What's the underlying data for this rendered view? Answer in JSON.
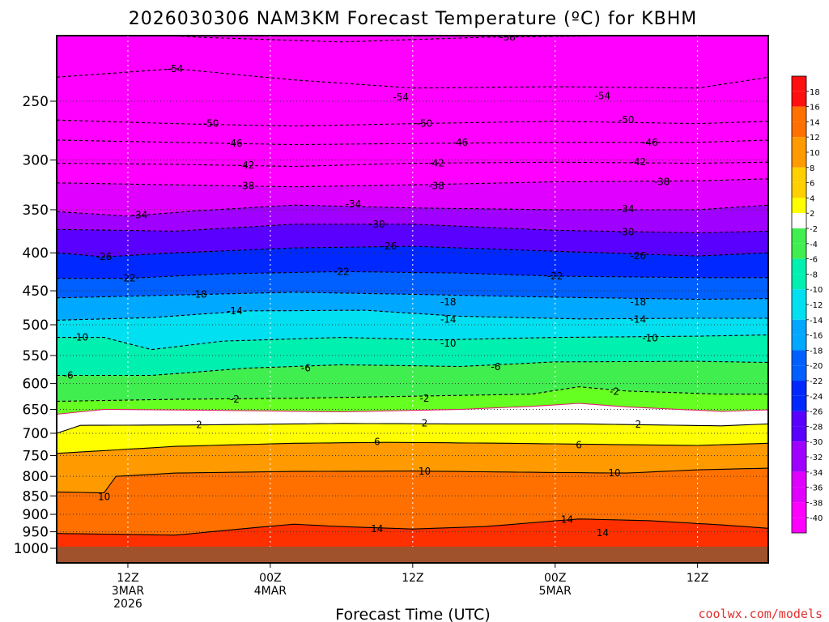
{
  "chart_data": {
    "type": "heatmap",
    "title": "2026030306 NAM3KM Forecast Temperature (ºC) for KBHM",
    "xlabel": "Forecast Time (UTC)",
    "ylabel": "",
    "credit": "coolwx.com/models",
    "y_scale": "inverted",
    "ylim": [
      1000,
      200
    ],
    "y_ticks": [
      250,
      300,
      350,
      400,
      450,
      500,
      550,
      600,
      650,
      700,
      750,
      800,
      850,
      900,
      950,
      1000
    ],
    "x_ticks": [
      {
        "hour": 6,
        "lines": [
          "12Z",
          "3MAR",
          "2026"
        ]
      },
      {
        "hour": 18,
        "lines": [
          "00Z",
          "4MAR"
        ]
      },
      {
        "hour": 30,
        "lines": [
          "12Z"
        ]
      },
      {
        "hour": 42,
        "lines": [
          "00Z",
          "5MAR"
        ]
      },
      {
        "hour": 54,
        "lines": [
          "12Z"
        ]
      }
    ],
    "xlim": [
      0,
      60
    ],
    "grid": true,
    "colorbar": {
      "position": "right",
      "labels": [
        "18",
        "16",
        "14",
        "12",
        "10",
        "8",
        "6",
        "4",
        "2",
        "-2",
        "-4",
        "-6",
        "-8",
        "-10",
        "-12",
        "-14",
        "-16",
        "-18",
        "-20",
        "-22",
        "-24",
        "-26",
        "-28",
        "-30",
        "-32",
        "-34",
        "-36",
        "-38",
        "-40"
      ]
    },
    "isotherms": [
      {
        "temp": -58,
        "dashed": true,
        "levels_by_hour": [
          [
            0,
            200
          ],
          [
            12,
            205
          ],
          [
            24,
            208
          ],
          [
            36,
            205
          ],
          [
            48,
            204
          ],
          [
            60,
            202
          ]
        ],
        "labels": [
          {
            "hour": 38,
            "level": 205,
            "text": "-58"
          }
        ]
      },
      {
        "temp": -54,
        "dashed": true,
        "levels_by_hour": [
          [
            0,
            232
          ],
          [
            10,
            226
          ],
          [
            20,
            234
          ],
          [
            30,
            240
          ],
          [
            42,
            239
          ],
          [
            54,
            240
          ],
          [
            60,
            232
          ]
        ],
        "labels": [
          {
            "hour": 10,
            "level": 226,
            "text": "-54"
          },
          {
            "hour": 29,
            "level": 247,
            "text": "-54"
          },
          {
            "hour": 46,
            "level": 246,
            "text": "-54"
          }
        ]
      },
      {
        "temp": -50,
        "dashed": true,
        "levels_by_hour": [
          [
            0,
            265
          ],
          [
            10,
            268
          ],
          [
            20,
            270
          ],
          [
            30,
            268
          ],
          [
            42,
            266
          ],
          [
            54,
            268
          ],
          [
            60,
            266
          ]
        ],
        "labels": [
          {
            "hour": 13,
            "level": 268,
            "text": "-50"
          },
          {
            "hour": 31,
            "level": 268,
            "text": "-50"
          },
          {
            "hour": 48,
            "level": 265,
            "text": "-50"
          }
        ]
      },
      {
        "temp": -46,
        "dashed": true,
        "levels_by_hour": [
          [
            0,
            282
          ],
          [
            10,
            284
          ],
          [
            20,
            286
          ],
          [
            30,
            285
          ],
          [
            42,
            284
          ],
          [
            54,
            284
          ],
          [
            60,
            282
          ]
        ],
        "labels": [
          {
            "hour": 15,
            "level": 285,
            "text": "-46"
          },
          {
            "hour": 34,
            "level": 284,
            "text": "-46"
          },
          {
            "hour": 50,
            "level": 284,
            "text": "-46"
          }
        ]
      },
      {
        "temp": -42,
        "dashed": true,
        "levels_by_hour": [
          [
            0,
            303
          ],
          [
            10,
            304
          ],
          [
            20,
            306
          ],
          [
            30,
            303
          ],
          [
            42,
            302
          ],
          [
            54,
            303
          ],
          [
            60,
            302
          ]
        ],
        "labels": [
          {
            "hour": 16,
            "level": 305,
            "text": "-42"
          },
          {
            "hour": 32,
            "level": 303,
            "text": "-42"
          },
          {
            "hour": 49,
            "level": 302,
            "text": "-42"
          }
        ]
      },
      {
        "temp": -38,
        "dashed": true,
        "levels_by_hour": [
          [
            0,
            322
          ],
          [
            10,
            324
          ],
          [
            20,
            326
          ],
          [
            30,
            324
          ],
          [
            42,
            321
          ],
          [
            54,
            320
          ],
          [
            60,
            318
          ]
        ],
        "labels": [
          {
            "hour": 16,
            "level": 325,
            "text": "-38"
          },
          {
            "hour": 32,
            "level": 325,
            "text": "-38"
          },
          {
            "hour": 51,
            "level": 321,
            "text": "-38"
          }
        ]
      },
      {
        "temp": -34,
        "dashed": true,
        "levels_by_hour": [
          [
            0,
            352
          ],
          [
            6,
            357
          ],
          [
            12,
            351
          ],
          [
            20,
            345
          ],
          [
            30,
            348
          ],
          [
            42,
            350
          ],
          [
            54,
            350
          ],
          [
            60,
            345
          ]
        ],
        "labels": [
          {
            "hour": 7,
            "level": 356,
            "text": "-34"
          },
          {
            "hour": 25,
            "level": 344,
            "text": "-34"
          },
          {
            "hour": 48,
            "level": 349,
            "text": "-34"
          }
        ]
      },
      {
        "temp": -30,
        "dashed": true,
        "levels_by_hour": [
          [
            0,
            372
          ],
          [
            10,
            374
          ],
          [
            20,
            366
          ],
          [
            30,
            366
          ],
          [
            42,
            373
          ],
          [
            54,
            376
          ],
          [
            60,
            374
          ]
        ],
        "labels": [
          {
            "hour": 27,
            "level": 366,
            "text": "-30"
          },
          {
            "hour": 48,
            "level": 375,
            "text": "-30"
          }
        ]
      },
      {
        "temp": -26,
        "dashed": true,
        "levels_by_hour": [
          [
            0,
            400
          ],
          [
            4,
            405
          ],
          [
            10,
            400
          ],
          [
            20,
            394
          ],
          [
            30,
            392
          ],
          [
            42,
            398
          ],
          [
            54,
            404
          ],
          [
            60,
            400
          ]
        ],
        "labels": [
          {
            "hour": 4,
            "level": 405,
            "text": "-26"
          },
          {
            "hour": 28,
            "level": 392,
            "text": "-26"
          },
          {
            "hour": 49,
            "level": 404,
            "text": "-26"
          }
        ]
      },
      {
        "temp": -22,
        "dashed": true,
        "levels_by_hour": [
          [
            0,
            433
          ],
          [
            6,
            433
          ],
          [
            14,
            427
          ],
          [
            24,
            424
          ],
          [
            34,
            426
          ],
          [
            42,
            430
          ],
          [
            54,
            432
          ],
          [
            60,
            432
          ]
        ],
        "labels": [
          {
            "hour": 6,
            "level": 433,
            "text": "-22"
          },
          {
            "hour": 24,
            "level": 424,
            "text": "-22"
          },
          {
            "hour": 42,
            "level": 430,
            "text": "-22"
          }
        ]
      },
      {
        "temp": -18,
        "dashed": true,
        "levels_by_hour": [
          [
            0,
            460
          ],
          [
            10,
            456
          ],
          [
            20,
            452
          ],
          [
            30,
            455
          ],
          [
            42,
            459
          ],
          [
            54,
            462
          ],
          [
            60,
            461
          ]
        ],
        "labels": [
          {
            "hour": 12,
            "level": 455,
            "text": "-18"
          },
          {
            "hour": 33,
            "level": 466,
            "text": "-18"
          },
          {
            "hour": 49,
            "level": 466,
            "text": "-18"
          }
        ]
      },
      {
        "temp": -14,
        "dashed": true,
        "levels_by_hour": [
          [
            0,
            493
          ],
          [
            8,
            489
          ],
          [
            16,
            479
          ],
          [
            26,
            478
          ],
          [
            34,
            487
          ],
          [
            44,
            491
          ],
          [
            54,
            490
          ],
          [
            60,
            490
          ]
        ],
        "labels": [
          {
            "hour": 15,
            "level": 479,
            "text": "-14"
          },
          {
            "hour": 33,
            "level": 492,
            "text": "-14"
          },
          {
            "hour": 49,
            "level": 492,
            "text": "-14"
          }
        ]
      },
      {
        "temp": -10,
        "dashed": true,
        "levels_by_hour": [
          [
            0,
            520
          ],
          [
            4,
            520
          ],
          [
            8,
            540
          ],
          [
            14,
            526
          ],
          [
            24,
            520
          ],
          [
            32,
            524
          ],
          [
            42,
            520
          ],
          [
            54,
            518
          ],
          [
            60,
            516
          ]
        ],
        "labels": [
          {
            "hour": 2,
            "level": 520,
            "text": "-10"
          },
          {
            "hour": 33,
            "level": 530,
            "text": "-10"
          },
          {
            "hour": 50,
            "level": 521,
            "text": "-10"
          }
        ]
      },
      {
        "temp": -6,
        "dashed": true,
        "levels_by_hour": [
          [
            0,
            585
          ],
          [
            8,
            585
          ],
          [
            16,
            572
          ],
          [
            24,
            566
          ],
          [
            34,
            569
          ],
          [
            42,
            561
          ],
          [
            54,
            560
          ],
          [
            60,
            562
          ]
        ],
        "labels": [
          {
            "hour": 1,
            "level": 585,
            "text": "-6"
          },
          {
            "hour": 21,
            "level": 572,
            "text": "-6"
          },
          {
            "hour": 37,
            "level": 570,
            "text": "-6"
          }
        ]
      },
      {
        "temp": -2,
        "dashed": true,
        "levels_by_hour": [
          [
            0,
            634
          ],
          [
            10,
            630
          ],
          [
            20,
            628
          ],
          [
            30,
            624
          ],
          [
            40,
            620
          ],
          [
            44,
            606
          ],
          [
            48,
            614
          ],
          [
            56,
            620
          ],
          [
            60,
            620
          ]
        ],
        "labels": [
          {
            "hour": 15,
            "level": 630,
            "text": "-2"
          },
          {
            "hour": 31,
            "level": 628,
            "text": "-2"
          },
          {
            "hour": 47,
            "level": 615,
            "text": "-2"
          }
        ]
      },
      {
        "temp": 0,
        "dashed": false,
        "color": "#e0206a",
        "levels_by_hour": [
          [
            0,
            660
          ],
          [
            4,
            650
          ],
          [
            14,
            652
          ],
          [
            24,
            655
          ],
          [
            34,
            650
          ],
          [
            40,
            644
          ],
          [
            44,
            638
          ],
          [
            48,
            645
          ],
          [
            56,
            654
          ],
          [
            60,
            651
          ]
        ],
        "labels": []
      },
      {
        "temp": 2,
        "dashed": false,
        "levels_by_hour": [
          [
            0,
            700
          ],
          [
            2,
            683
          ],
          [
            12,
            682
          ],
          [
            24,
            679
          ],
          [
            34,
            680
          ],
          [
            44,
            680
          ],
          [
            56,
            684
          ],
          [
            60,
            680
          ]
        ],
        "labels": [
          {
            "hour": 12,
            "level": 682,
            "text": "2"
          },
          {
            "hour": 31,
            "level": 678,
            "text": "2"
          },
          {
            "hour": 49,
            "level": 681,
            "text": "2"
          }
        ]
      },
      {
        "temp": 6,
        "dashed": false,
        "levels_by_hour": [
          [
            0,
            745
          ],
          [
            10,
            729
          ],
          [
            20,
            722
          ],
          [
            28,
            720
          ],
          [
            38,
            722
          ],
          [
            44,
            724
          ],
          [
            54,
            727
          ],
          [
            60,
            722
          ]
        ],
        "labels": [
          {
            "hour": 27,
            "level": 719,
            "text": "6"
          },
          {
            "hour": 44,
            "level": 726,
            "text": "6"
          }
        ]
      },
      {
        "temp": 10,
        "dashed": false,
        "levels_by_hour": [
          [
            0,
            840
          ],
          [
            4,
            842
          ],
          [
            5,
            800
          ],
          [
            10,
            792
          ],
          [
            20,
            788
          ],
          [
            30,
            787
          ],
          [
            40,
            790
          ],
          [
            48,
            792
          ],
          [
            54,
            784
          ],
          [
            60,
            780
          ]
        ],
        "labels": [
          {
            "hour": 4,
            "level": 853,
            "text": "10"
          },
          {
            "hour": 31,
            "level": 788,
            "text": "10"
          },
          {
            "hour": 47,
            "level": 792,
            "text": "10"
          }
        ]
      },
      {
        "temp": 14,
        "dashed": false,
        "levels_by_hour": [
          [
            0,
            955
          ],
          [
            10,
            960
          ],
          [
            16,
            940
          ],
          [
            20,
            928
          ],
          [
            24,
            935
          ],
          [
            30,
            942
          ],
          [
            36,
            935
          ],
          [
            44,
            913
          ],
          [
            50,
            918
          ],
          [
            56,
            930
          ],
          [
            60,
            940
          ]
        ],
        "labels": [
          {
            "hour": 27,
            "level": 942,
            "text": "14"
          },
          {
            "hour": 43,
            "level": 915,
            "text": "14"
          },
          {
            "hour": 46,
            "level": 953,
            "text": "14"
          }
        ]
      }
    ]
  }
}
